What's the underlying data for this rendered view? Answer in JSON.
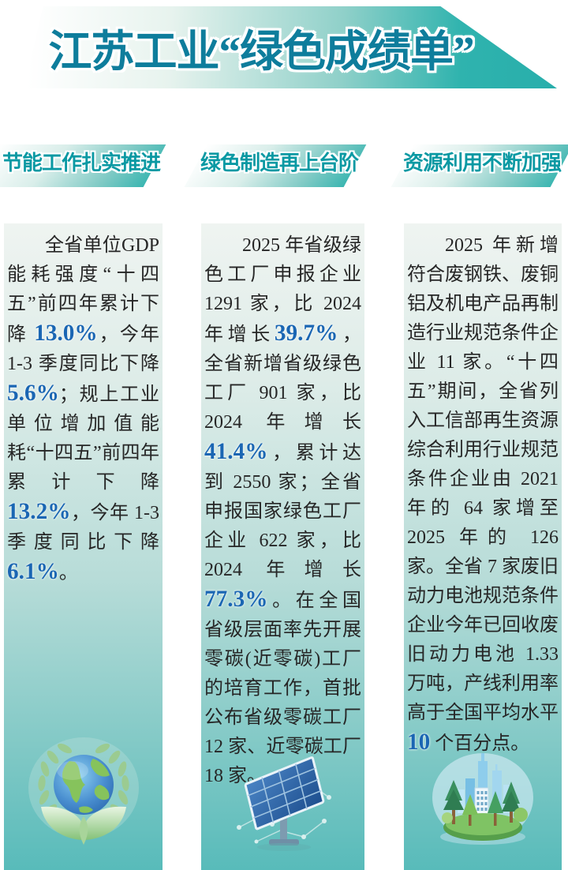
{
  "banner": {
    "title": "江苏工业“绿色成绩单”"
  },
  "colors": {
    "accent_teal": "#2fb3ae",
    "title_text": "#0e7d9c",
    "header_text": "#0a99a3",
    "number_blue": "#1a66b3",
    "column_gradient_bottom": "#58bbba"
  },
  "sections": [
    {
      "header": "节能工作扎实推进",
      "icon": "globe-leaves-icon",
      "body": [
        {
          "t": "全省单位GDP 能耗强度“十四五”前四年累计下降 "
        },
        {
          "t": "13.0%",
          "hl": true
        },
        {
          "t": "，今年 1-3 季度同比下降 "
        },
        {
          "t": "5.6%",
          "hl": true
        },
        {
          "t": "；规上工业单位增加值能耗“十四五”前四年累计下降"
        },
        {
          "t": "13.2%",
          "hl": true
        },
        {
          "t": "，今年 1-3 季度同比下降"
        },
        {
          "t": "6.1%",
          "hl": true
        },
        {
          "t": "。"
        }
      ]
    },
    {
      "header": "绿色制造再上台阶",
      "icon": "solar-panel-icon",
      "body": [
        {
          "t": "2025 年省级绿色工厂申报企业 1291 家，比 2024 年增长"
        },
        {
          "t": "39.7%",
          "hl": true
        },
        {
          "t": "，全省新增省级绿色工厂 901 家，比 2024 年增长"
        },
        {
          "t": "41.4%",
          "hl": true
        },
        {
          "t": "，累计达到 2550 家；全省申报国家绿色工厂企业 622 家，比 2024 年增长"
        },
        {
          "t": "77.3%",
          "hl": true
        },
        {
          "t": "。在全国省级层面率先开展零碳(近零碳)工厂的培育工作，首批公布省级零碳工厂 12 家、近零碳工厂 18 家。"
        }
      ]
    },
    {
      "header": "资源利用不断加强",
      "icon": "city-island-icon",
      "body": [
        {
          "t": "2025 年新增符合废钢铁、废铜铝及机电产品再制造行业规范条件企业 11 家。“十四五”期间，全省列入工信部再生资源综合利用行业规范条件企业由 2021 年的 64 家增至 2025 年的 126 家。全省 7 家废旧动力电池规范条件企业今年已回收废旧动力电池 1.33 万吨，产线利用率高于全国平均水平 "
        },
        {
          "t": "10",
          "hl": true
        },
        {
          "t": " 个百分点。"
        }
      ]
    }
  ]
}
